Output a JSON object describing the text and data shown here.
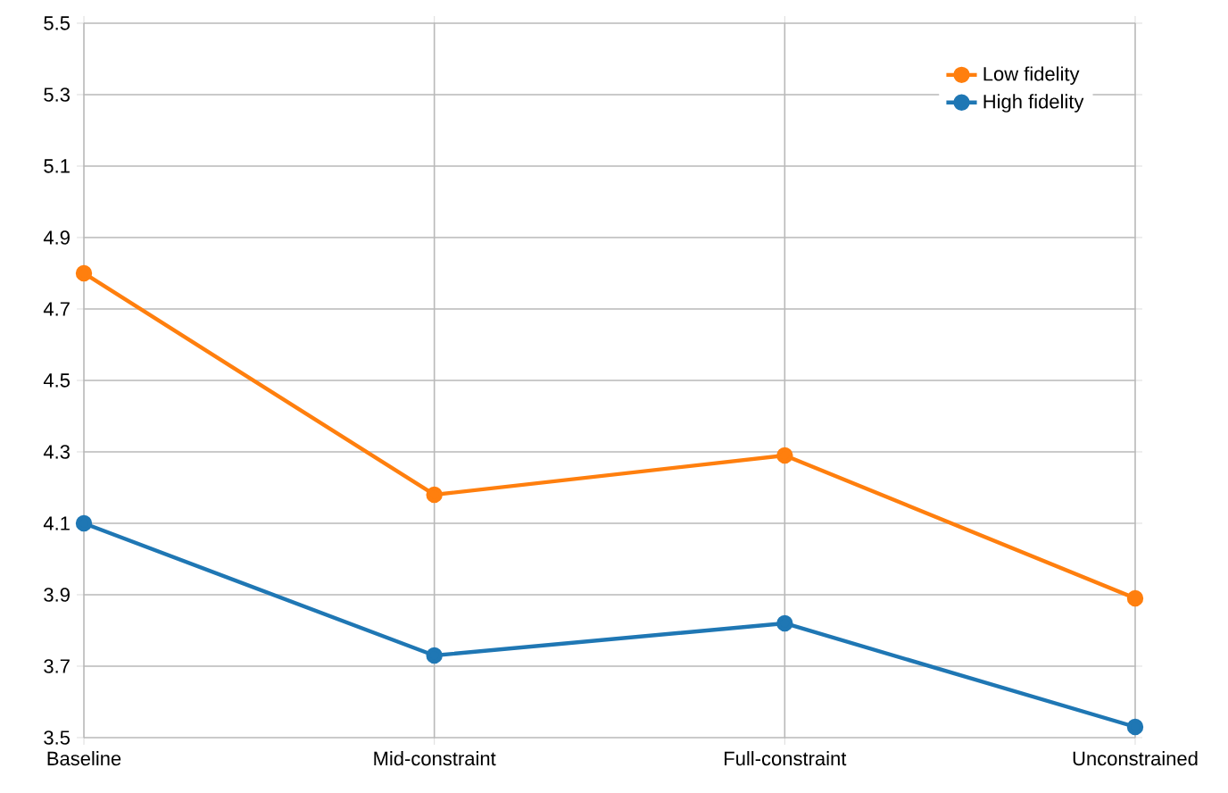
{
  "chart_data": {
    "type": "line",
    "categories": [
      "Baseline",
      "Mid-constraint",
      "Full-constraint",
      "Unconstrained"
    ],
    "series": [
      {
        "name": "Low fidelity",
        "color": "#ff7f0e",
        "values": [
          4.8,
          4.18,
          4.29,
          3.89
        ]
      },
      {
        "name": "High fidelity",
        "color": "#1f77b4",
        "values": [
          4.1,
          3.73,
          3.82,
          3.53
        ]
      }
    ],
    "ylim": [
      3.5,
      5.5
    ],
    "yticks": [
      3.5,
      3.7,
      3.9,
      4.1,
      4.3,
      4.5,
      4.7,
      4.9,
      5.1,
      5.3,
      5.5
    ],
    "grid": true,
    "legend": "top right",
    "marker": "circle",
    "line_style": "solid"
  }
}
